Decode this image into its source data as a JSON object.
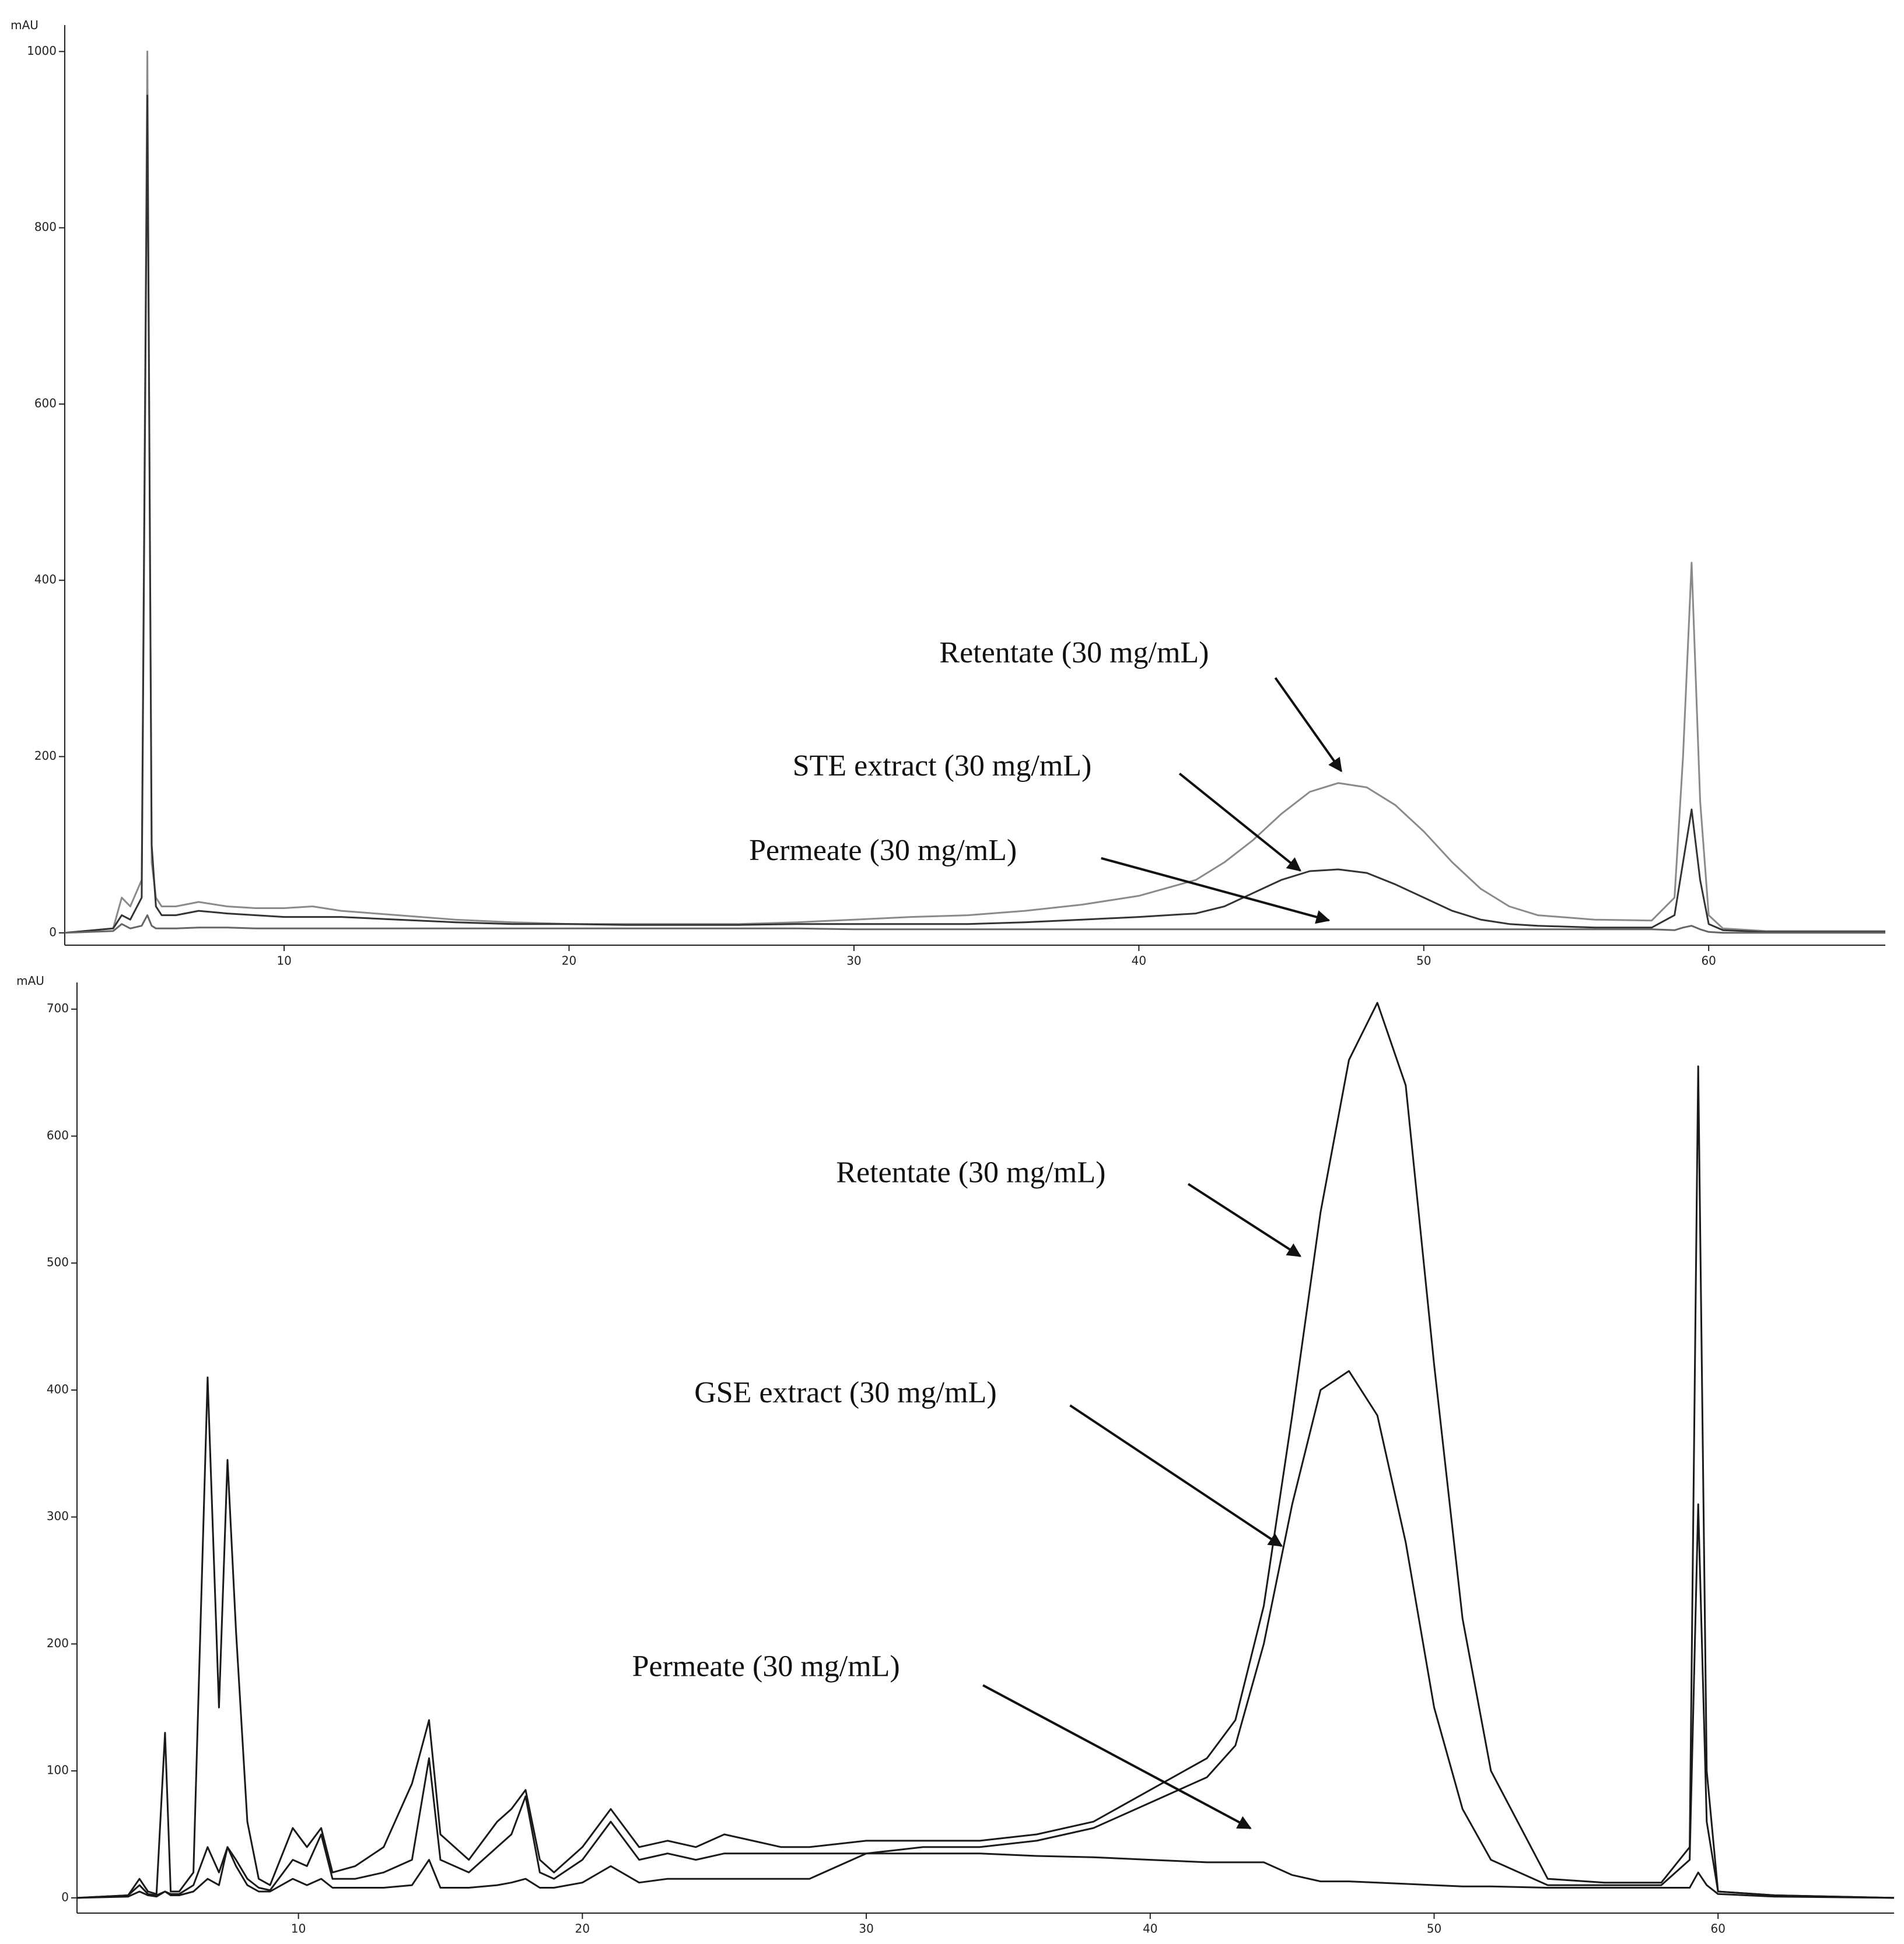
{
  "chart_data": [
    {
      "type": "line",
      "y_label": "mAU",
      "x": [
        2.3,
        4,
        4.3,
        4.6,
        5,
        5.2,
        5.35,
        5.5,
        5.7,
        5.9,
        6.2,
        7,
        8,
        9,
        10,
        11,
        12,
        14,
        16,
        18,
        20,
        22,
        24,
        26,
        28,
        30,
        32,
        34,
        36,
        38,
        40,
        42,
        43,
        44,
        45,
        46,
        47,
        48,
        49,
        50,
        51,
        52,
        53,
        54,
        56,
        58,
        58.8,
        59.1,
        59.4,
        59.7,
        60,
        60.5,
        62,
        64,
        66.2
      ],
      "series": [
        {
          "color": "#8a8a8a",
          "values": [
            0,
            5,
            40,
            30,
            60,
            1000,
            80,
            40,
            30,
            30,
            30,
            35,
            30,
            28,
            28,
            30,
            25,
            20,
            15,
            12,
            10,
            10,
            10,
            10,
            12,
            15,
            18,
            20,
            25,
            32,
            42,
            60,
            80,
            105,
            135,
            160,
            170,
            165,
            145,
            115,
            80,
            50,
            30,
            20,
            15,
            14,
            40,
            200,
            420,
            150,
            20,
            5,
            2,
            2,
            2
          ]
        },
        {
          "color": "#333333",
          "values": [
            0,
            5,
            20,
            15,
            40,
            950,
            100,
            30,
            20,
            20,
            20,
            25,
            22,
            20,
            18,
            18,
            18,
            15,
            12,
            10,
            10,
            9,
            9,
            9,
            10,
            10,
            10,
            10,
            12,
            15,
            18,
            22,
            30,
            45,
            60,
            70,
            72,
            68,
            55,
            40,
            25,
            15,
            10,
            8,
            6,
            6,
            20,
            80,
            140,
            60,
            10,
            3,
            1,
            1,
            1
          ]
        },
        {
          "color": "#666666",
          "values": [
            0,
            2,
            10,
            5,
            8,
            20,
            8,
            5,
            5,
            5,
            5,
            6,
            6,
            5,
            5,
            5,
            5,
            5,
            5,
            5,
            5,
            5,
            5,
            5,
            5,
            4,
            4,
            4,
            4,
            4,
            4,
            4,
            4,
            4,
            4,
            4,
            4,
            4,
            4,
            4,
            4,
            4,
            4,
            4,
            4,
            4,
            3,
            6,
            8,
            4,
            1,
            0,
            0,
            0,
            0
          ]
        }
      ],
      "xlim": [
        2.3,
        66.2
      ],
      "ylim": [
        -14,
        1030
      ],
      "xticks": [
        10,
        20,
        30,
        40,
        50,
        60
      ],
      "yticks": [
        0,
        200,
        400,
        600,
        800,
        1000
      ],
      "annotations": [
        "Retentate (30 mg/mL)",
        "STE extract (30 mg/mL)",
        "Permeate (30 mg/mL)"
      ]
    },
    {
      "type": "line",
      "y_label": "mAU",
      "x": [
        2.2,
        4,
        4.4,
        4.7,
        5,
        5.3,
        5.5,
        5.8,
        6.3,
        6.8,
        7.2,
        7.5,
        7.8,
        8.2,
        8.6,
        9,
        9.8,
        10.3,
        10.8,
        11.2,
        12,
        13,
        14,
        14.6,
        15,
        16,
        17,
        17.5,
        18,
        18.5,
        19,
        20,
        21,
        22,
        23,
        24,
        25,
        26,
        27,
        28,
        30,
        32,
        34,
        36,
        38,
        40,
        42,
        43,
        44,
        45,
        46,
        47,
        48,
        49,
        50,
        51,
        52,
        54,
        56,
        58,
        59,
        59.3,
        59.6,
        60,
        62,
        66.2
      ],
      "series": [
        {
          "color": "#1a1a1a",
          "values": [
            0,
            2,
            15,
            5,
            3,
            130,
            5,
            5,
            20,
            410,
            150,
            345,
            210,
            60,
            15,
            10,
            55,
            40,
            55,
            20,
            25,
            40,
            90,
            140,
            50,
            30,
            60,
            70,
            85,
            30,
            20,
            40,
            70,
            40,
            45,
            40,
            50,
            45,
            40,
            40,
            45,
            45,
            45,
            50,
            60,
            85,
            110,
            140,
            230,
            380,
            540,
            660,
            705,
            640,
            420,
            220,
            100,
            15,
            12,
            12,
            40,
            655,
            100,
            5,
            2,
            0
          ]
        },
        {
          "color": "#1a1a1a",
          "values": [
            0,
            2,
            10,
            3,
            2,
            5,
            3,
            3,
            10,
            40,
            20,
            40,
            30,
            15,
            8,
            6,
            30,
            25,
            50,
            15,
            15,
            20,
            30,
            110,
            30,
            20,
            40,
            50,
            80,
            20,
            15,
            30,
            60,
            30,
            35,
            30,
            35,
            35,
            35,
            35,
            35,
            40,
            40,
            45,
            55,
            75,
            95,
            120,
            200,
            310,
            400,
            415,
            380,
            280,
            150,
            70,
            30,
            10,
            10,
            10,
            30,
            310,
            60,
            5,
            2,
            0
          ]
        },
        {
          "color": "#1a1a1a",
          "values": [
            0,
            1,
            5,
            2,
            1,
            5,
            2,
            2,
            5,
            15,
            10,
            40,
            25,
            10,
            5,
            5,
            15,
            10,
            15,
            8,
            8,
            8,
            10,
            30,
            8,
            8,
            10,
            12,
            15,
            8,
            8,
            12,
            25,
            12,
            15,
            15,
            15,
            15,
            15,
            15,
            35,
            35,
            35,
            33,
            32,
            30,
            28,
            28,
            28,
            18,
            13,
            13,
            12,
            11,
            10,
            9,
            9,
            8,
            8,
            8,
            8,
            20,
            10,
            3,
            1,
            0
          ]
        }
      ],
      "xlim": [
        2.2,
        66.2
      ],
      "ylim": [
        -12,
        721
      ],
      "xticks": [
        10,
        20,
        30,
        40,
        50,
        60
      ],
      "yticks": [
        0,
        100,
        200,
        300,
        400,
        500,
        600,
        700
      ],
      "annotations": [
        "Retentate (30 mg/mL)",
        "GSE extract (30 mg/mL)",
        "Permeate (30 mg/mL)"
      ]
    }
  ]
}
